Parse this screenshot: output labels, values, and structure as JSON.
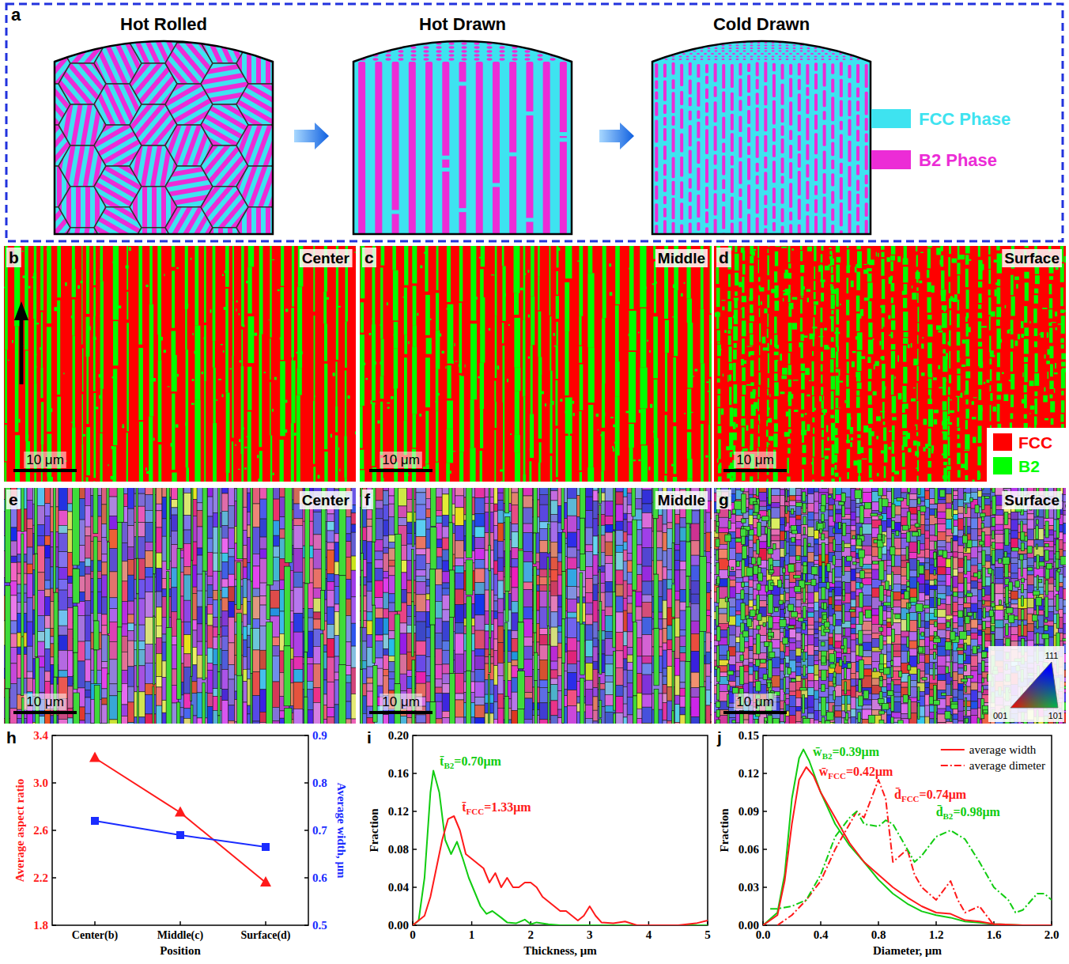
{
  "panel_a": {
    "letter": "a",
    "stages": [
      "Hot Rolled",
      "Hot Drawn",
      "Cold Drawn"
    ],
    "legend": [
      {
        "label": "FCC Phase",
        "color": "#3ee3f0"
      },
      {
        "label": "B2 Phase",
        "color": "#ec2cd6"
      }
    ]
  },
  "phase_maps": {
    "letters": [
      "b",
      "c",
      "d"
    ],
    "positions": [
      "Center",
      "Middle",
      "Surface"
    ],
    "scale_bar": "10 μm",
    "legend": [
      {
        "label": "FCC",
        "color": "#ff0000"
      },
      {
        "label": "B2",
        "color": "#00ff00"
      }
    ]
  },
  "ipf_maps": {
    "letters": [
      "e",
      "f",
      "g"
    ],
    "positions": [
      "Center",
      "Middle",
      "Surface"
    ],
    "scale_bar": "10 μm",
    "ipf_key": [
      "111",
      "001",
      "101"
    ]
  },
  "chart_data": [
    {
      "letter": "h",
      "type": "line",
      "categories": [
        "Center(b)",
        "Middle(c)",
        "Surface(d)"
      ],
      "x_label": "Position",
      "y_label": "Average aspect ratio",
      "y2_label": "Average width, μm",
      "ylim": [
        1.8,
        3.4
      ],
      "yticks": [
        1.8,
        2.2,
        2.6,
        {
          "value": 3,
          "label": "3.0"
        },
        3.4
      ],
      "y2lim": [
        0.5,
        0.9
      ],
      "y2ticks": [
        0.5,
        0.6,
        0.7,
        0.8,
        0.9
      ],
      "grid": false,
      "series": [
        {
          "color": "#ff1a1a",
          "marker": "triangle",
          "line_style": "solid",
          "values": [
            3.21,
            2.75,
            2.16
          ]
        },
        {
          "color": "#1a2cff",
          "marker": "square",
          "line_style": "solid",
          "axis": "y2",
          "values": [
            0.72,
            0.69,
            0.665
          ]
        }
      ]
    },
    {
      "letter": "i",
      "type": "line",
      "x_label": "Thickness, μm",
      "y_label": "Fraction",
      "xlim": [
        0,
        5
      ],
      "xticks": [
        0,
        1,
        2,
        3,
        4,
        5
      ],
      "ylim": [
        0,
        0.2
      ],
      "yticks": [
        {
          "value": 0,
          "label": "0.00"
        },
        0.04,
        0.08,
        0.12,
        0.16,
        {
          "value": 0.2,
          "label": "0.20"
        }
      ],
      "grid": false,
      "series": [
        {
          "color": "#11cc11",
          "line_style": "solid",
          "x": [
            0,
            0.1,
            0.2,
            0.3,
            0.35,
            0.45,
            0.55,
            0.65,
            0.75,
            0.85,
            0.95,
            1.05,
            1.15,
            1.25,
            1.35,
            1.5,
            1.6,
            1.75,
            1.9,
            2.0,
            2.1,
            2.3,
            2.5,
            5
          ],
          "values": [
            0,
            0.005,
            0.05,
            0.14,
            0.163,
            0.14,
            0.09,
            0.075,
            0.088,
            0.07,
            0.05,
            0.035,
            0.02,
            0.012,
            0.015,
            0.008,
            0.003,
            0.002,
            0.006,
            0.001,
            0.003,
            0.001,
            0,
            0
          ],
          "annotation": {
            "symbol": "t̄",
            "sub": "B2",
            "rest": "=0.70μm"
          }
        },
        {
          "color": "#ff1a1a",
          "line_style": "solid",
          "x": [
            0,
            0.2,
            0.3,
            0.4,
            0.5,
            0.6,
            0.7,
            0.8,
            0.9,
            1.0,
            1.1,
            1.2,
            1.3,
            1.4,
            1.5,
            1.6,
            1.7,
            1.8,
            1.9,
            2.0,
            2.1,
            2.2,
            2.3,
            2.4,
            2.5,
            2.6,
            2.7,
            2.8,
            2.9,
            3.0,
            3.1,
            3.2,
            3.4,
            3.6,
            3.8,
            4.0,
            4.5,
            4.8,
            5.0
          ],
          "values": [
            0,
            0.01,
            0.03,
            0.06,
            0.09,
            0.112,
            0.115,
            0.1,
            0.075,
            0.07,
            0.065,
            0.06,
            0.045,
            0.055,
            0.04,
            0.05,
            0.04,
            0.04,
            0.045,
            0.045,
            0.04,
            0.03,
            0.025,
            0.02,
            0.015,
            0.015,
            0.01,
            0.005,
            0.01,
            0.02,
            0.01,
            0.003,
            0.002,
            0.004,
            0,
            0,
            0,
            0.002,
            0.005
          ],
          "annotation": {
            "symbol": "t̄",
            "sub": "FCC",
            "rest": "=1.33μm"
          }
        }
      ]
    },
    {
      "letter": "j",
      "type": "line",
      "x_label": "Diameter, μm",
      "y_label": "Fraction",
      "xlim": [
        0,
        2
      ],
      "xticks": [
        {
          "value": 0,
          "label": "0.0"
        },
        0.4,
        0.8,
        1.2,
        1.6,
        {
          "value": 2,
          "label": "2.0"
        }
      ],
      "ylim": [
        0,
        0.15
      ],
      "yticks": [
        {
          "value": 0,
          "label": "0.00"
        },
        0.03,
        0.06,
        0.09,
        0.12,
        0.15
      ],
      "grid": false,
      "legend": "upper right",
      "legend_entries": [
        {
          "label": "average width",
          "line_style": "solid",
          "color": "#ff1a1a"
        },
        {
          "label": "average dimeter",
          "line_style": "dashdot",
          "color": "#ff1a1a"
        }
      ],
      "series": [
        {
          "color": "#11cc11",
          "line_style": "solid",
          "x": [
            0,
            0.1,
            0.15,
            0.2,
            0.25,
            0.28,
            0.32,
            0.4,
            0.5,
            0.6,
            0.7,
            0.8,
            0.9,
            1.0,
            1.1,
            1.2,
            1.3,
            1.4,
            1.5,
            1.6,
            1.8,
            2.0
          ],
          "values": [
            0,
            0.01,
            0.04,
            0.1,
            0.132,
            0.139,
            0.13,
            0.105,
            0.08,
            0.063,
            0.05,
            0.036,
            0.025,
            0.017,
            0.011,
            0.008,
            0.006,
            0.003,
            0.002,
            0.001,
            0,
            0
          ],
          "annotation": {
            "symbol": "w̄",
            "sub": "B2",
            "rest": "=0.39μm"
          }
        },
        {
          "color": "#ff1a1a",
          "line_style": "solid",
          "x": [
            0,
            0.1,
            0.15,
            0.2,
            0.25,
            0.3,
            0.35,
            0.4,
            0.5,
            0.6,
            0.7,
            0.8,
            0.9,
            1.0,
            1.1,
            1.2,
            1.3,
            1.4,
            1.5,
            1.6,
            1.8,
            2.0
          ],
          "values": [
            0,
            0.008,
            0.035,
            0.08,
            0.115,
            0.125,
            0.118,
            0.105,
            0.085,
            0.065,
            0.05,
            0.04,
            0.03,
            0.022,
            0.015,
            0.01,
            0.009,
            0.004,
            0.003,
            0.001,
            0,
            0
          ],
          "annotation": {
            "symbol": "w̄",
            "sub": "FCC",
            "rest": "=0.42μm"
          }
        },
        {
          "color": "#ff1a1a",
          "line_style": "dashdot",
          "x": [
            0.1,
            0.2,
            0.3,
            0.4,
            0.5,
            0.6,
            0.65,
            0.7,
            0.75,
            0.8,
            0.85,
            0.9,
            1.0,
            1.05,
            1.1,
            1.2,
            1.3,
            1.35,
            1.4,
            1.5,
            1.6,
            1.8,
            2.0
          ],
          "values": [
            0,
            0.008,
            0.02,
            0.035,
            0.06,
            0.08,
            0.09,
            0.085,
            0.1,
            0.115,
            0.1,
            0.05,
            0.06,
            0.04,
            0.03,
            0.02,
            0.035,
            0.02,
            0.01,
            0.015,
            0,
            0,
            0
          ],
          "annotation": {
            "symbol": "d̄",
            "sub": "FCC",
            "rest": "=0.74μm"
          }
        },
        {
          "color": "#11cc11",
          "line_style": "dashdot",
          "x": [
            0.05,
            0.1,
            0.2,
            0.3,
            0.4,
            0.5,
            0.6,
            0.65,
            0.7,
            0.8,
            0.85,
            0.9,
            1.0,
            1.05,
            1.1,
            1.2,
            1.3,
            1.4,
            1.5,
            1.6,
            1.7,
            1.75,
            1.8,
            1.9,
            1.95,
            2.0
          ],
          "values": [
            0.013,
            0.013,
            0.015,
            0.02,
            0.04,
            0.07,
            0.085,
            0.09,
            0.08,
            0.078,
            0.083,
            0.08,
            0.06,
            0.05,
            0.055,
            0.07,
            0.075,
            0.068,
            0.05,
            0.03,
            0.02,
            0.01,
            0.012,
            0.025,
            0.025,
            0.02
          ],
          "annotation": {
            "symbol": "d̄",
            "sub": "B2",
            "rest": "=0.98μm"
          }
        }
      ]
    }
  ]
}
